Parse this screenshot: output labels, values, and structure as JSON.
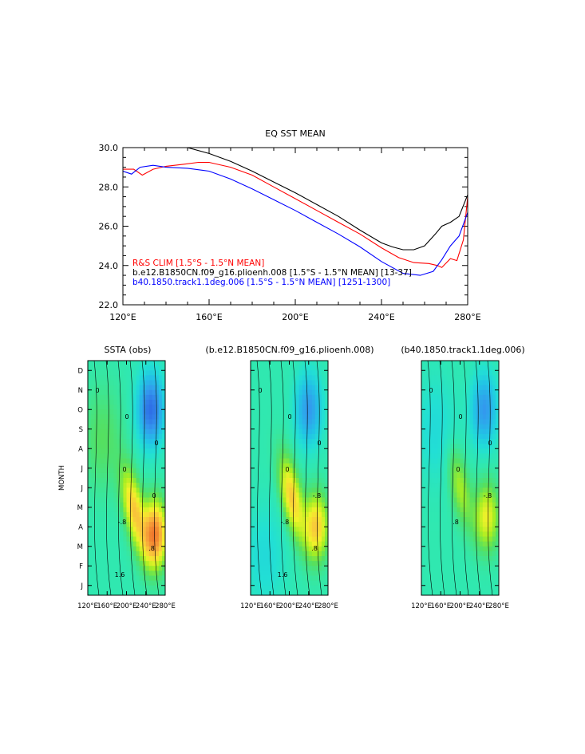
{
  "chart_data": [
    {
      "type": "line",
      "title": "EQ SST MEAN",
      "xlabel": "",
      "ylabel": "",
      "xlim": [
        120,
        280
      ],
      "ylim": [
        22,
        30
      ],
      "x_ticks": [
        120,
        160,
        200,
        240,
        280
      ],
      "x_tick_labels": [
        "120°E",
        "160°E",
        "200°E",
        "240°E",
        "280°E"
      ],
      "y_ticks": [
        22,
        24,
        26,
        28,
        30
      ],
      "y_tick_labels": [
        "22.0",
        "24.0",
        "26.0",
        "28.0",
        "30.0"
      ],
      "legend": "bottom-left",
      "series": [
        {
          "name": "R&S CLIM [1.5°S - 1.5°N MEAN]",
          "color": "#ff0000",
          "x": [
            120,
            125,
            129,
            134,
            140,
            148,
            155,
            160,
            170,
            180,
            190,
            200,
            210,
            220,
            230,
            240,
            248,
            255,
            262,
            266,
            268,
            272,
            275,
            278,
            280
          ],
          "y": [
            28.9,
            28.9,
            28.6,
            28.9,
            29.05,
            29.15,
            29.25,
            29.25,
            29.0,
            28.6,
            28.0,
            27.4,
            26.8,
            26.2,
            25.6,
            24.9,
            24.4,
            24.15,
            24.1,
            24.0,
            23.9,
            24.35,
            24.25,
            25.3,
            27.5
          ]
        },
        {
          "name": "b.e12.B1850CN.f09_g16.plioenh.008 [1.5°S - 1.5°N MEAN] [13-37]",
          "color": "#000000",
          "x": [
            150,
            160,
            170,
            180,
            190,
            200,
            210,
            220,
            230,
            240,
            245,
            250,
            255,
            260,
            265,
            268,
            272,
            276,
            280
          ],
          "y": [
            30.0,
            29.7,
            29.3,
            28.8,
            28.25,
            27.7,
            27.1,
            26.5,
            25.8,
            25.15,
            24.95,
            24.8,
            24.8,
            25.0,
            25.6,
            26.0,
            26.2,
            26.5,
            27.6
          ]
        },
        {
          "name": "b40.1850.track1.1deg.006 [1.5°S - 1.5°N MEAN] [1251-1300]",
          "color": "#0000ff",
          "x": [
            120,
            124,
            128,
            134,
            140,
            150,
            160,
            170,
            180,
            190,
            200,
            210,
            220,
            230,
            240,
            250,
            258,
            264,
            268,
            272,
            276,
            280
          ],
          "y": [
            28.8,
            28.65,
            29.0,
            29.1,
            29.0,
            28.95,
            28.8,
            28.4,
            27.9,
            27.35,
            26.8,
            26.2,
            25.6,
            24.95,
            24.2,
            23.6,
            23.5,
            23.7,
            24.3,
            25.0,
            25.5,
            26.7
          ]
        }
      ]
    },
    {
      "type": "heatmap",
      "title": "SSTA (obs)",
      "ylabel": "MONTH",
      "xlim": [
        120,
        280
      ],
      "x_tick_labels": [
        "120°E",
        "160°E",
        "200°E",
        "240°E",
        "280°E"
      ],
      "y_tick_labels": [
        "J",
        "F",
        "M",
        "A",
        "M",
        "J",
        "J",
        "A",
        "S",
        "O",
        "N",
        "D"
      ],
      "contour_labels": [
        "0",
        "0",
        "0",
        "0",
        "0",
        "-.8",
        ".8",
        "1.6"
      ],
      "features": [
        {
          "x": 250,
          "month": 9.0,
          "value": -2.4
        },
        {
          "x": 215,
          "month": 3.9,
          "value": 1.6
        },
        {
          "x": 258,
          "month": 2.6,
          "value": 2.4
        },
        {
          "x": 150,
          "month": 7.5,
          "value": 0.4
        }
      ]
    },
    {
      "type": "heatmap",
      "title": "(b.e12.B1850CN.f09_g16.plioenh.008)",
      "xlim": [
        120,
        280
      ],
      "x_tick_labels": [
        "120°E",
        "160°E",
        "200°E",
        "240°E",
        "280°E"
      ],
      "contour_labels": [
        "0",
        "0",
        "0",
        "0",
        "-.8",
        "-.8",
        ".8",
        "1.6"
      ],
      "features": [
        {
          "x": 240,
          "month": 9.0,
          "value": -1.6
        },
        {
          "x": 205,
          "month": 4.5,
          "value": 1.6
        },
        {
          "x": 255,
          "month": 3.0,
          "value": 1.6
        },
        {
          "x": 150,
          "month": 1.5,
          "value": -0.4
        }
      ]
    },
    {
      "type": "heatmap",
      "title": "(b40.1850.track1.1deg.006)",
      "xlim": [
        120,
        280
      ],
      "x_tick_labels": [
        "120°E",
        "160°E",
        "200°E",
        "240°E",
        "280°E"
      ],
      "contour_labels": [
        "0",
        "0",
        "0",
        "0",
        "-.8",
        ".8"
      ],
      "features": [
        {
          "x": 250,
          "month": 9.0,
          "value": -1.6
        },
        {
          "x": 200,
          "month": 5.0,
          "value": 0.8
        },
        {
          "x": 255,
          "month": 3.5,
          "value": 1.2
        },
        {
          "x": 150,
          "month": 8.0,
          "value": -0.4
        }
      ]
    }
  ]
}
